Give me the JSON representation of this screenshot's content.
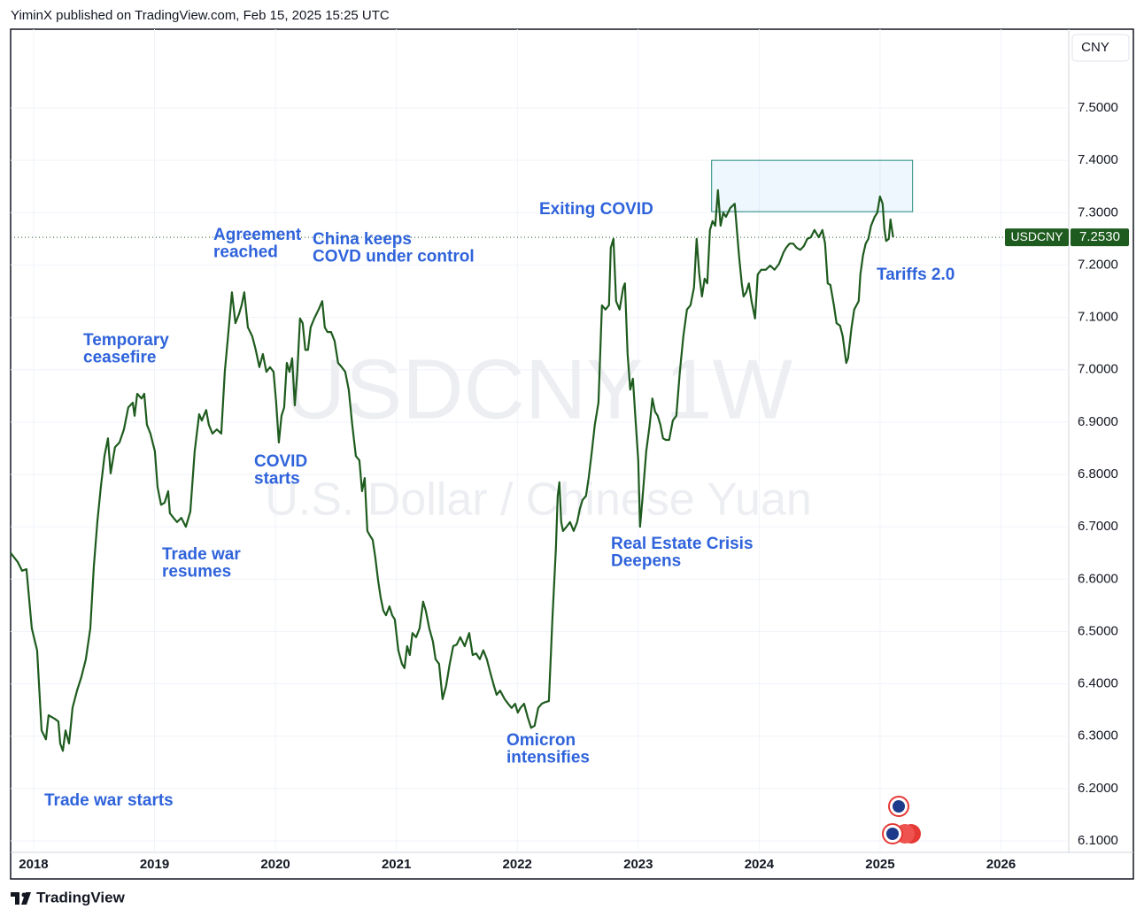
{
  "header": {
    "text": "YiminX published on TradingView.com, Feb 15, 2025 15:25 UTC"
  },
  "footer": {
    "brand": "TradingView"
  },
  "chart_data": {
    "type": "line",
    "watermark": [
      "USDCNY 1W",
      "U.S. Dollar / Chinese Yuan"
    ],
    "currency": "CNY",
    "last_price_label": "7.2530",
    "grid": true,
    "xlim": [
      2017.81,
      2026.56
    ],
    "xticks": [
      2018,
      2019,
      2020,
      2021,
      2022,
      2023,
      2024,
      2025,
      2026
    ],
    "ylim": [
      6.078,
      7.6505
    ],
    "yticks": [
      {
        "value": 6.1,
        "label": "6.1000"
      },
      {
        "value": 6.2,
        "label": "6.2000"
      },
      {
        "value": 6.3,
        "label": "6.3000"
      },
      {
        "value": 6.4,
        "label": "6.4000"
      },
      {
        "value": 6.5,
        "label": "6.5000"
      },
      {
        "value": 6.6,
        "label": "6.6000"
      },
      {
        "value": 6.7,
        "label": "6.7000"
      },
      {
        "value": 6.8,
        "label": "6.8000"
      },
      {
        "value": 6.9,
        "label": "6.9000"
      },
      {
        "value": 7.0,
        "label": "7.0000"
      },
      {
        "value": 7.1,
        "label": "7.1000"
      },
      {
        "value": 7.2,
        "label": "7.2000"
      },
      {
        "value": 7.3,
        "label": "7.3000"
      },
      {
        "value": 7.4,
        "label": "7.4000"
      },
      {
        "value": 7.5,
        "label": "7.5000"
      }
    ],
    "highlight_box": {
      "x": [
        2023.607,
        2025.269
      ],
      "y": [
        7.302,
        7.4
      ]
    },
    "annotations": [
      [
        "Trade war starts"
      ],
      [
        "Temporary",
        "ceasefire"
      ],
      [
        "Trade war",
        "resumes"
      ],
      [
        "Agreement",
        "reached"
      ],
      [
        "COVID",
        "starts"
      ],
      [
        "China keeps",
        "COVD under control"
      ],
      [
        "Omicron",
        "intensifies"
      ],
      [
        "Exiting COVID"
      ],
      [
        "Real Estate Crisis",
        "Deepens"
      ],
      [
        "Tariffs 2.0"
      ]
    ],
    "x": [
      2017.81,
      2017.868,
      2017.905,
      2017.941,
      2017.985,
      2018.029,
      2018.066,
      2018.102,
      2018.124,
      2018.176,
      2018.205,
      2018.22,
      2018.242,
      2018.264,
      2018.293,
      2018.322,
      2018.359,
      2018.395,
      2018.432,
      2018.469,
      2018.498,
      2018.527,
      2018.556,
      2018.586,
      2018.615,
      2018.637,
      2018.673,
      2018.71,
      2018.747,
      2018.783,
      2018.82,
      2018.835,
      2018.857,
      2018.893,
      2018.915,
      2018.937,
      2018.966,
      2019.003,
      2019.025,
      2019.054,
      2019.083,
      2019.113,
      2019.127,
      2019.157,
      2019.186,
      2019.222,
      2019.259,
      2019.296,
      2019.332,
      2019.369,
      2019.391,
      2019.427,
      2019.449,
      2019.479,
      2019.515,
      2019.552,
      2019.581,
      2019.611,
      2019.64,
      2019.669,
      2019.698,
      2019.72,
      2019.742,
      2019.772,
      2019.808,
      2019.837,
      2019.867,
      2019.896,
      2019.925,
      2019.955,
      2019.984,
      2020.006,
      2020.028,
      2020.05,
      2020.072,
      2020.094,
      2020.116,
      2020.138,
      2020.16,
      2020.181,
      2020.203,
      2020.225,
      2020.247,
      2020.269,
      2020.291,
      2020.321,
      2020.357,
      2020.387,
      2020.408,
      2020.43,
      2020.46,
      2020.489,
      2020.518,
      2020.548,
      2020.577,
      2020.606,
      2020.635,
      2020.665,
      2020.694,
      2020.716,
      2020.738,
      2020.76,
      2020.782,
      2020.804,
      2020.826,
      2020.848,
      2020.87,
      2020.892,
      2020.914,
      2020.943,
      2020.965,
      2020.987,
      2021.016,
      2021.046,
      2021.067,
      2021.089,
      2021.111,
      2021.133,
      2021.163,
      2021.192,
      2021.221,
      2021.243,
      2021.272,
      2021.302,
      2021.324,
      2021.353,
      2021.382,
      2021.411,
      2021.441,
      2021.47,
      2021.499,
      2021.528,
      2021.565,
      2021.602,
      2021.631,
      2021.66,
      2021.69,
      2021.719,
      2021.748,
      2021.777,
      2021.807,
      2021.829,
      2021.858,
      2021.895,
      2021.924,
      2021.953,
      2021.982,
      2022.004,
      2022.026,
      2022.056,
      2022.085,
      2022.114,
      2022.143,
      2022.173,
      2022.202,
      2022.231,
      2022.261,
      2022.29,
      2022.319,
      2022.334,
      2022.348,
      2022.363,
      2022.378,
      2022.407,
      2022.436,
      2022.466,
      2022.495,
      2022.517,
      2022.539,
      2022.568,
      2022.59,
      2022.612,
      2022.641,
      2022.671,
      2022.7,
      2022.729,
      2022.758,
      2022.773,
      2022.795,
      2022.817,
      2022.846,
      2022.876,
      2022.89,
      2022.912,
      2022.934,
      2022.956,
      2022.978,
      2023.0,
      2023.015,
      2023.037,
      2023.066,
      2023.095,
      2023.117,
      2023.139,
      2023.161,
      2023.183,
      2023.205,
      2023.227,
      2023.256,
      2023.286,
      2023.315,
      2023.344,
      2023.373,
      2023.403,
      2023.432,
      2023.461,
      2023.483,
      2023.505,
      2023.527,
      2023.549,
      2023.571,
      2023.593,
      2023.615,
      2023.637,
      2023.659,
      2023.681,
      2023.703,
      2023.725,
      2023.761,
      2023.798,
      2023.834,
      2023.856,
      2023.871,
      2023.893,
      2023.915,
      2023.937,
      2023.966,
      2023.988,
      2024.017,
      2024.054,
      2024.091,
      2024.127,
      2024.164,
      2024.201,
      2024.223,
      2024.252,
      2024.281,
      2024.31,
      2024.34,
      2024.369,
      2024.398,
      2024.427,
      2024.457,
      2024.493,
      2024.523,
      2024.545,
      2024.567,
      2024.589,
      2024.618,
      2024.64,
      2024.669,
      2024.691,
      2024.72,
      2024.735,
      2024.764,
      2024.786,
      2024.823,
      2024.837,
      2024.859,
      2024.881,
      2024.903,
      2024.925,
      2024.955,
      2024.977,
      2024.999,
      2025.021,
      2025.035,
      2025.05,
      2025.072,
      2025.086,
      2025.108
    ],
    "series": [
      {
        "name": "USDCNY",
        "color": "#1e5b1e",
        "values": [
          6.65,
          6.633,
          6.616,
          6.619,
          6.506,
          6.464,
          6.311,
          6.294,
          6.34,
          6.333,
          6.328,
          6.286,
          6.272,
          6.311,
          6.286,
          6.354,
          6.387,
          6.413,
          6.447,
          6.506,
          6.624,
          6.709,
          6.776,
          6.835,
          6.869,
          6.802,
          6.852,
          6.861,
          6.886,
          6.928,
          6.937,
          6.912,
          6.954,
          6.945,
          6.954,
          6.895,
          6.878,
          6.844,
          6.776,
          6.742,
          6.746,
          6.768,
          6.726,
          6.717,
          6.709,
          6.717,
          6.7,
          6.729,
          6.844,
          6.915,
          6.903,
          6.923,
          6.895,
          6.878,
          6.886,
          6.878,
          6.996,
          7.072,
          7.148,
          7.089,
          7.106,
          7.123,
          7.148,
          7.081,
          7.064,
          7.038,
          7.005,
          7.03,
          6.996,
          7.005,
          6.996,
          6.937,
          6.861,
          6.912,
          6.928,
          7.013,
          6.996,
          7.022,
          6.932,
          6.996,
          7.098,
          7.089,
          7.038,
          7.038,
          7.081,
          7.098,
          7.115,
          7.131,
          7.081,
          7.072,
          7.072,
          7.055,
          7.013,
          7.005,
          6.996,
          6.962,
          6.895,
          6.835,
          6.827,
          6.768,
          6.793,
          6.692,
          6.683,
          6.675,
          6.641,
          6.599,
          6.565,
          6.54,
          6.531,
          6.548,
          6.531,
          6.523,
          6.464,
          6.438,
          6.43,
          6.472,
          6.455,
          6.497,
          6.489,
          6.506,
          6.557,
          6.54,
          6.506,
          6.481,
          6.447,
          6.438,
          6.371,
          6.396,
          6.438,
          6.472,
          6.475,
          6.489,
          6.472,
          6.497,
          6.455,
          6.458,
          6.447,
          6.464,
          6.447,
          6.421,
          6.396,
          6.379,
          6.387,
          6.371,
          6.362,
          6.354,
          6.362,
          6.345,
          6.354,
          6.362,
          6.337,
          6.316,
          6.32,
          6.354,
          6.362,
          6.365,
          6.367,
          6.523,
          6.658,
          6.759,
          6.785,
          6.709,
          6.692,
          6.7,
          6.709,
          6.692,
          6.709,
          6.734,
          6.751,
          6.759,
          6.793,
          6.835,
          6.895,
          6.937,
          7.123,
          7.115,
          7.123,
          7.233,
          7.25,
          7.131,
          7.115,
          7.157,
          7.165,
          7.03,
          6.962,
          6.983,
          6.903,
          6.827,
          6.7,
          6.759,
          6.844,
          6.895,
          6.945,
          6.92,
          6.912,
          6.895,
          6.869,
          6.866,
          6.866,
          6.903,
          6.912,
          6.996,
          7.064,
          7.115,
          7.123,
          7.157,
          7.25,
          7.182,
          7.14,
          7.174,
          7.165,
          7.267,
          7.284,
          7.275,
          7.343,
          7.275,
          7.3,
          7.292,
          7.309,
          7.317,
          7.216,
          7.165,
          7.14,
          7.148,
          7.165,
          7.131,
          7.098,
          7.182,
          7.191,
          7.191,
          7.199,
          7.191,
          7.202,
          7.224,
          7.233,
          7.241,
          7.241,
          7.233,
          7.229,
          7.236,
          7.25,
          7.253,
          7.267,
          7.253,
          7.267,
          7.241,
          7.165,
          7.162,
          7.123,
          7.089,
          7.084,
          7.064,
          7.013,
          7.022,
          7.081,
          7.115,
          7.131,
          7.182,
          7.219,
          7.241,
          7.25,
          7.275,
          7.292,
          7.3,
          7.331,
          7.317,
          7.27,
          7.246,
          7.25,
          7.287,
          7.253
        ]
      }
    ]
  }
}
